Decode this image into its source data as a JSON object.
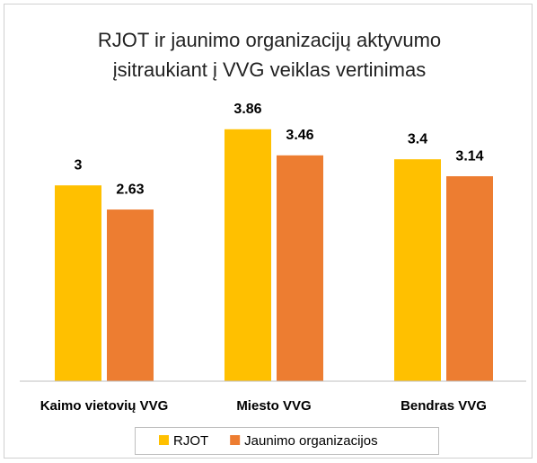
{
  "chart_data": {
    "type": "bar",
    "title": [
      "RJOT ir jaunimo organizacijų aktyvumo",
      "įsitraukiant į VVG veiklas vertinimas"
    ],
    "categories": [
      "Kaimo vietovių VVG",
      "Miesto VVG",
      "Bendras VVG"
    ],
    "series": [
      {
        "name": "RJOT",
        "color": "#ffc000",
        "values": [
          3,
          3.86,
          3.4
        ]
      },
      {
        "name": "Jaunimo organizacijos",
        "color": "#ed7d31",
        "values": [
          2.63,
          3.46,
          3.14
        ]
      }
    ],
    "ylim": [
      0,
      5
    ],
    "legend": "bottom"
  }
}
